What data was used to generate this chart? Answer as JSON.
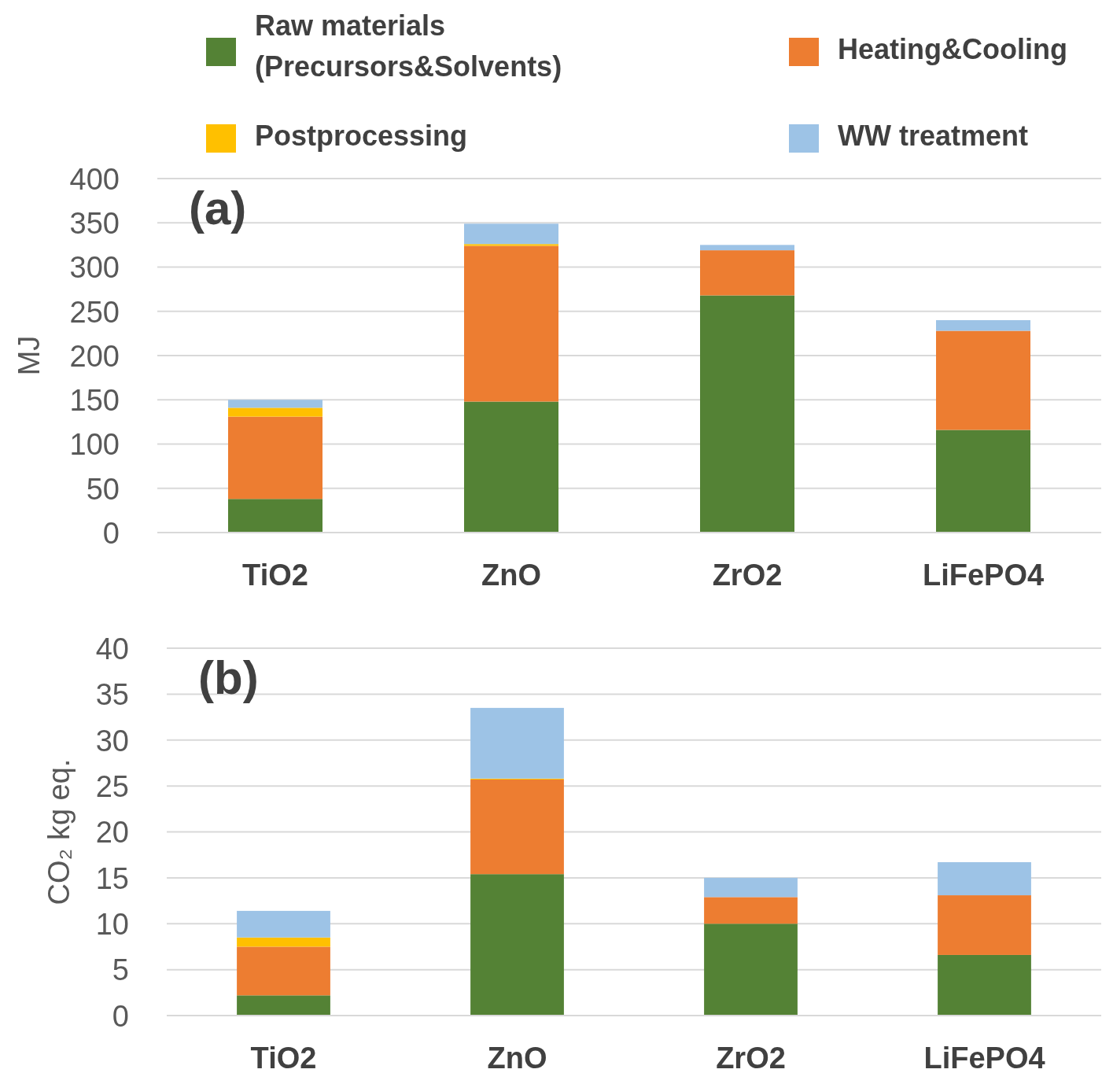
{
  "chart_data": [
    {
      "type": "bar",
      "stacked": true,
      "ylabel": "MJ",
      "categories": [
        "TiO2",
        "ZnO",
        "ZrO2",
        "LiFePO4"
      ],
      "ylim": [
        0,
        400
      ],
      "yticks": [
        0,
        50,
        100,
        150,
        200,
        250,
        300,
        350,
        400
      ],
      "grid": "y",
      "legend": "top",
      "annotations": [
        "(a)"
      ],
      "series": [
        {
          "name": "Raw materials (Precursors&Solvents)",
          "color": "#548235",
          "values": [
            38,
            148,
            268,
            116
          ]
        },
        {
          "name": "Heating&Cooling",
          "color": "#ed7d31",
          "values": [
            93,
            176,
            51,
            112
          ]
        },
        {
          "name": "Postprocessing",
          "color": "#ffc000",
          "values": [
            10,
            2,
            0,
            0
          ]
        },
        {
          "name": "WW treatment",
          "color": "#9dc3e6",
          "values": [
            9,
            23,
            6,
            12
          ]
        }
      ]
    },
    {
      "type": "bar",
      "stacked": true,
      "ylabel": "CO₂ kg eq.",
      "categories": [
        "TiO2",
        "ZnO",
        "ZrO2",
        "LiFePO4"
      ],
      "ylim": [
        0,
        40
      ],
      "yticks": [
        0,
        5,
        10,
        15,
        20,
        25,
        30,
        35,
        40
      ],
      "grid": "y",
      "annotations": [
        "(b)"
      ],
      "series": [
        {
          "color": "#548235",
          "values": [
            2.2,
            15.4,
            10,
            6.6
          ]
        },
        {
          "color": "#ed7d31",
          "values": [
            5.3,
            10.3,
            2.9,
            6.5
          ]
        },
        {
          "color": "#ffc000",
          "values": [
            1,
            0.1,
            0,
            0
          ]
        },
        {
          "color": "#9dc3e6",
          "values": [
            2.9,
            7.7,
            2.1,
            3.6
          ]
        }
      ]
    }
  ]
}
